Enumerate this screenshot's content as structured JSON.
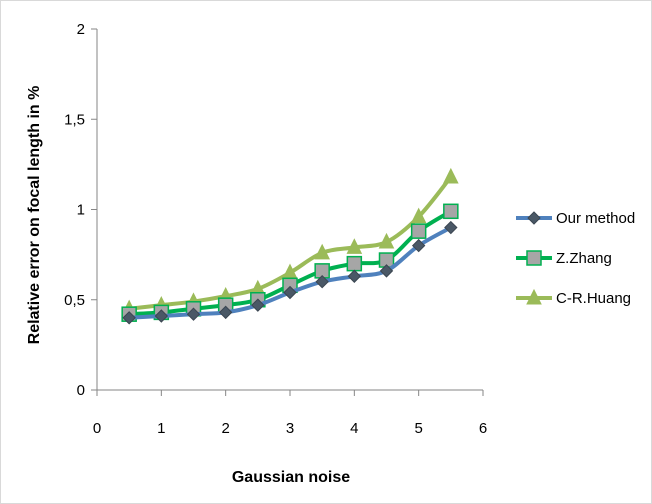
{
  "chart_data": {
    "type": "line",
    "title": "",
    "xlabel": "Gaussian noise",
    "ylabel": "Relative error on focal length in %",
    "xlim": [
      0,
      6
    ],
    "ylim": [
      0,
      2
    ],
    "x_ticks": [
      "0",
      "1",
      "2",
      "3",
      "4",
      "5",
      "6"
    ],
    "y_ticks": [
      "0",
      "0,5",
      "1",
      "1,5",
      "2"
    ],
    "grid": false,
    "legend_position": "right",
    "x": [
      0.5,
      1,
      1.5,
      2,
      2.5,
      3,
      3.5,
      4,
      4.5,
      5,
      5.5
    ],
    "series": [
      {
        "name": "Our method",
        "color": "#4f81bd",
        "marker": "diamond",
        "values": [
          0.4,
          0.41,
          0.42,
          0.43,
          0.47,
          0.54,
          0.6,
          0.63,
          0.66,
          0.8,
          0.9
        ]
      },
      {
        "name": "Z.Zhang",
        "color": "#00b050",
        "marker": "square",
        "values": [
          0.42,
          0.43,
          0.45,
          0.47,
          0.5,
          0.58,
          0.66,
          0.7,
          0.72,
          0.88,
          0.99
        ]
      },
      {
        "name": "C-R.Huang",
        "color": "#9bbb59",
        "marker": "triangle",
        "values": [
          0.45,
          0.47,
          0.49,
          0.52,
          0.56,
          0.65,
          0.76,
          0.79,
          0.82,
          0.96,
          1.18
        ]
      }
    ]
  }
}
